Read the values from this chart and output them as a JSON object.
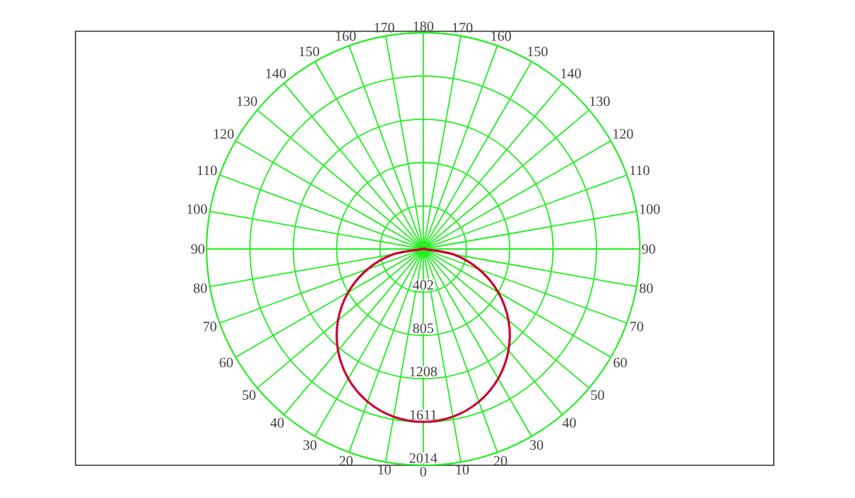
{
  "chart_data": {
    "type": "radar",
    "categories": [
      "180",
      "170",
      "160",
      "150",
      "140",
      "130",
      "120",
      "110",
      "100",
      "90",
      "80",
      "70",
      "60",
      "50",
      "40",
      "30",
      "20",
      "10",
      "0",
      "10",
      "20",
      "30",
      "40",
      "50",
      "60",
      "70",
      "80",
      "90",
      "100",
      "110",
      "120",
      "130",
      "140",
      "150",
      "160",
      "170"
    ],
    "series": [
      {
        "color": "#cc0033",
        "values": [
          0,
          0,
          0,
          0,
          0,
          0,
          0,
          0,
          0,
          0,
          280,
          551,
          805,
          1035,
          1233,
          1394,
          1513,
          1586,
          1610,
          1586,
          1513,
          1394,
          1233,
          1035,
          805,
          551,
          280,
          0,
          0,
          0,
          0,
          0,
          0,
          0,
          0,
          0
        ]
      }
    ],
    "ylim": [
      0,
      2014
    ],
    "yticks": [
      402,
      805,
      1208,
      1611,
      2014
    ],
    "grid": true
  }
}
